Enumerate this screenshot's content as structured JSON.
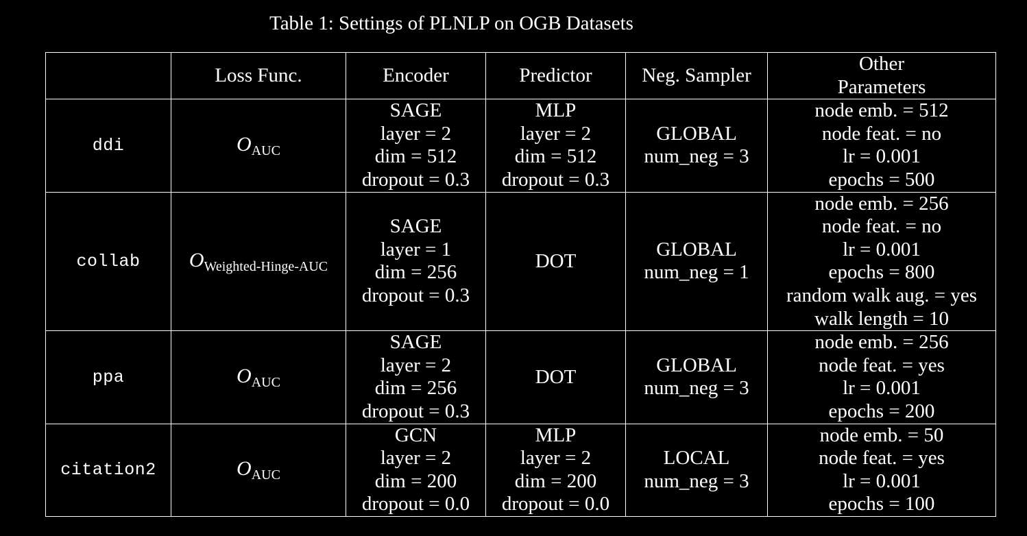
{
  "caption": "Table 1: Settings of PLNLP on OGB Datasets",
  "headers": [
    "",
    "Loss Func.",
    "Encoder",
    "Predictor",
    "Neg. Sampler",
    "Other\nParameters"
  ],
  "header_other_line1": "Other",
  "header_other_line2": "Parameters",
  "loss_symbol": "O",
  "rows": [
    {
      "dataset": "ddi",
      "loss_sub": "AUC",
      "encoder": [
        "SAGE",
        "layer = 2",
        "dim = 512",
        "dropout = 0.3"
      ],
      "predictor": [
        "MLP",
        "layer = 2",
        "dim = 512",
        "dropout = 0.3"
      ],
      "sampler": [
        "GLOBAL",
        "num_neg = 3"
      ],
      "other": [
        "node emb. = 512",
        "node feat. = no",
        "lr = 0.001",
        "epochs = 500"
      ]
    },
    {
      "dataset": "collab",
      "loss_sub": "Weighted-Hinge-AUC",
      "encoder": [
        "SAGE",
        "layer = 1",
        "dim = 256",
        "dropout = 0.3"
      ],
      "predictor": [
        "DOT"
      ],
      "sampler": [
        "GLOBAL",
        "num_neg = 1"
      ],
      "other": [
        "node emb. = 256",
        "node feat. = no",
        "lr = 0.001",
        "epochs = 800",
        "random walk aug. = yes",
        "walk length = 10"
      ]
    },
    {
      "dataset": "ppa",
      "loss_sub": "AUC",
      "encoder": [
        "SAGE",
        "layer = 2",
        "dim = 256",
        "dropout = 0.3"
      ],
      "predictor": [
        "DOT"
      ],
      "sampler": [
        "GLOBAL",
        "num_neg = 3"
      ],
      "other": [
        "node emb. = 256",
        "node feat. = yes",
        "lr = 0.001",
        "epochs = 200"
      ]
    },
    {
      "dataset": "citation2",
      "loss_sub": "AUC",
      "encoder": [
        "GCN",
        "layer = 2",
        "dim = 200",
        "dropout = 0.0"
      ],
      "predictor": [
        "MLP",
        "layer = 2",
        "dim = 200",
        "dropout = 0.0"
      ],
      "sampler": [
        "LOCAL",
        "num_neg = 3"
      ],
      "other": [
        "node emb. = 50",
        "node feat. = yes",
        "lr = 0.001",
        "epochs = 100"
      ]
    }
  ]
}
